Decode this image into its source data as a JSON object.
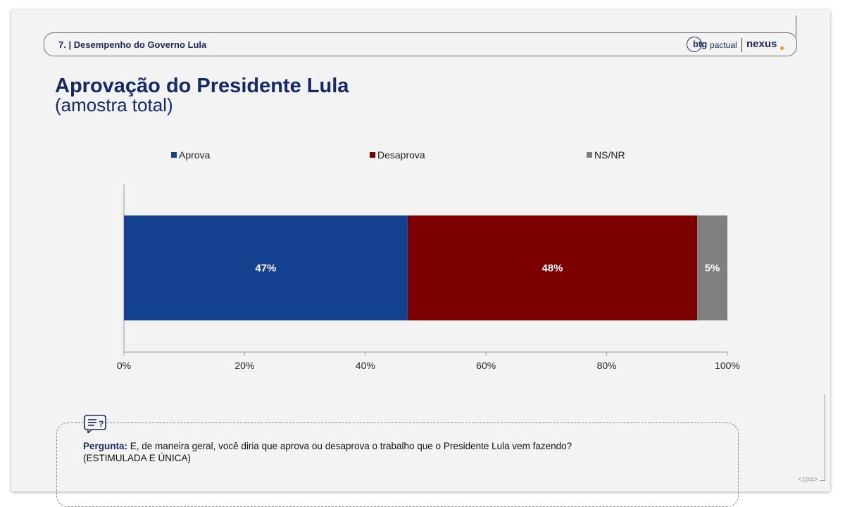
{
  "header": {
    "section_title": "7. | Desempenho do Governo Lula",
    "logo_btg": "btg",
    "logo_pactual": "pactual",
    "logo_nexus": "nexus"
  },
  "title": "Aprovação do Presidente Lula",
  "subtitle": "(amostra total)",
  "chart_data": {
    "type": "bar",
    "orientation": "horizontal-stacked",
    "categories": [
      ""
    ],
    "series": [
      {
        "name": "Aprova",
        "values": [
          47
        ],
        "label": "47%",
        "color": "#13408f"
      },
      {
        "name": "Desaprova",
        "values": [
          48
        ],
        "label": "48%",
        "color": "#7c0000"
      },
      {
        "name": "NS/NR",
        "values": [
          5
        ],
        "label": "5%",
        "color": "#7f7f7f"
      }
    ],
    "xlim": [
      0,
      100
    ],
    "x_ticks": [
      0,
      20,
      40,
      60,
      80,
      100
    ],
    "x_tick_labels": [
      "0%",
      "20%",
      "40%",
      "60%",
      "80%",
      "100%"
    ],
    "legend_position": "top",
    "grid": false
  },
  "question": {
    "label": "Pergunta:",
    "text": "E, de maneira geral, você diria que aprova ou desaprova o trabalho que o Presidente Lula vem fazendo?",
    "note": "(ESTIMULADA E ÚNICA)"
  },
  "page_number": "<104>"
}
